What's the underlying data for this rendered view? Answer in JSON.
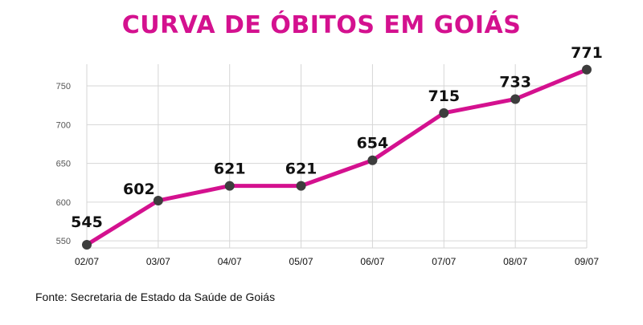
{
  "title": "CURVA DE ÓBITOS EM GOIÁS",
  "source": "Fonte: Secretaria de Estado da Saúde de Goiás",
  "colors": {
    "title": "#d4118f",
    "line": "#d4118f",
    "marker": "#3d3d3d",
    "grid": "#d6d6d6"
  },
  "chart_data": {
    "type": "line",
    "title": "CURVA DE ÓBITOS EM GOIÁS",
    "categories": [
      "02/07",
      "03/07",
      "04/07",
      "05/07",
      "06/07",
      "07/07",
      "08/07",
      "09/07"
    ],
    "values": [
      545,
      602,
      621,
      621,
      654,
      715,
      733,
      771
    ],
    "data_labels": [
      "545",
      "602",
      "621",
      "621",
      "654",
      "715",
      "733",
      "771"
    ],
    "y_ticks": [
      "550",
      "600",
      "650",
      "700",
      "750"
    ],
    "y_tick_values": [
      550,
      600,
      650,
      700,
      750
    ],
    "ylim": [
      545,
      778
    ],
    "grid": true,
    "legend": "none"
  }
}
